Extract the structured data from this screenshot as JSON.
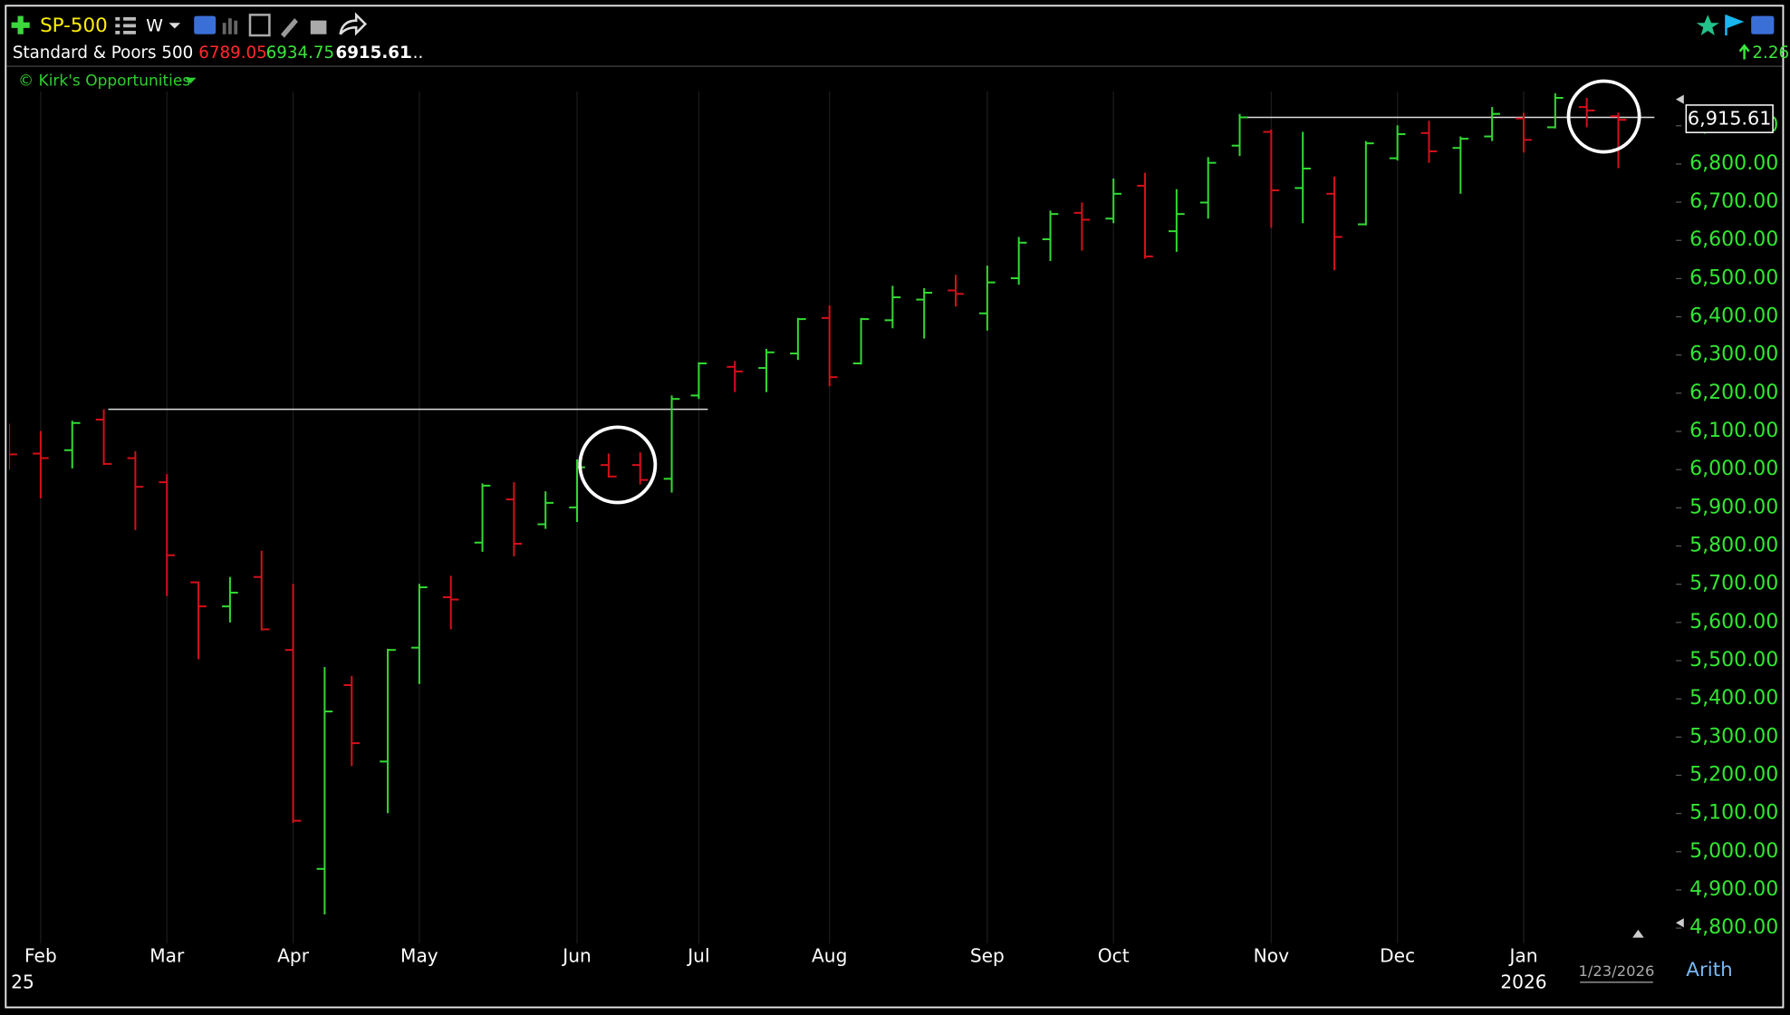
{
  "header": {
    "symbol": "SP-500",
    "interval": "W",
    "name": "Standard & Poors 500",
    "more": "...",
    "change": "2.26",
    "watermark": "© Kirk's Opportunities"
  },
  "chart_data": {
    "type": "ohlc",
    "x": [
      "2025-01-31",
      "2025-02-07",
      "2025-02-14",
      "2025-02-21",
      "2025-02-28",
      "2025-03-07",
      "2025-03-14",
      "2025-03-21",
      "2025-03-28",
      "2025-04-04",
      "2025-04-11",
      "2025-04-17",
      "2025-04-25",
      "2025-05-02",
      "2025-05-09",
      "2025-05-16",
      "2025-05-23",
      "2025-05-30",
      "2025-06-06",
      "2025-06-13",
      "2025-06-20",
      "2025-06-27",
      "2025-07-03",
      "2025-07-11",
      "2025-07-18",
      "2025-07-25",
      "2025-08-01",
      "2025-08-08",
      "2025-08-15",
      "2025-08-22",
      "2025-08-29",
      "2025-09-05",
      "2025-09-12",
      "2025-09-19",
      "2025-09-26",
      "2025-10-03",
      "2025-10-10",
      "2025-10-17",
      "2025-10-24",
      "2025-10-31",
      "2025-11-07",
      "2025-11-14",
      "2025-11-21",
      "2025-11-28",
      "2025-12-05",
      "2025-12-12",
      "2025-12-19",
      "2025-12-26",
      "2026-01-02",
      "2026-01-09",
      "2026-01-16",
      "2026-01-23"
    ],
    "open": [
      6070,
      6042,
      6051,
      6131,
      6030,
      5967,
      5705,
      5642,
      5719,
      5528,
      4955,
      5436,
      5236,
      5534,
      5666,
      5809,
      5922,
      5857,
      5901,
      6012,
      6012,
      5976,
      6194,
      6269,
      6266,
      6304,
      6397,
      6278,
      6391,
      6445,
      6469,
      6409,
      6501,
      6603,
      6672,
      6657,
      6743,
      6624,
      6699,
      6848,
      6884,
      6737,
      6722,
      6642,
      6815,
      6881,
      6842,
      6872,
      6919,
      6896,
      6949,
      6925
    ],
    "high": [
      6120,
      6101,
      6128,
      6158,
      6048,
      5988,
      5707,
      5719,
      5788,
      5701,
      5483,
      5460,
      5531,
      5701,
      5722,
      5964,
      5967,
      5943,
      6027,
      6042,
      6045,
      6194,
      6281,
      6284,
      6316,
      6397,
      6430,
      6397,
      6481,
      6475,
      6510,
      6534,
      6609,
      6678,
      6699,
      6762,
      6777,
      6734,
      6818,
      6931,
      6890,
      6884,
      6767,
      6860,
      6901,
      6913,
      6872,
      6949,
      6934,
      6985,
      6973,
      6934.75
    ],
    "low": [
      6000,
      5925,
      6003,
      6012,
      5842,
      5669,
      5504,
      5600,
      5579,
      5075,
      4836,
      5224,
      5101,
      5439,
      5582,
      5785,
      5773,
      5845,
      5863,
      5979,
      5961,
      5940,
      6185,
      6203,
      6203,
      6287,
      6218,
      6275,
      6370,
      6343,
      6427,
      6364,
      6484,
      6546,
      6573,
      6645,
      6552,
      6570,
      6657,
      6821,
      6633,
      6645,
      6522,
      6639,
      6809,
      6803,
      6722,
      6860,
      6830,
      6893,
      6896,
      6789.05
    ],
    "close": [
      6040,
      6030,
      6122,
      6015,
      5955,
      5776,
      5642,
      5678,
      5582,
      5081,
      5367,
      5284,
      5528,
      5692,
      5660,
      5958,
      5806,
      5913,
      6006,
      5982,
      5973,
      6185,
      6278,
      6257,
      6307,
      6394,
      6242,
      6394,
      6451,
      6463,
      6460,
      6490,
      6594,
      6669,
      6654,
      6722,
      6558,
      6669,
      6803,
      6922,
      6731,
      6788,
      6609,
      6854,
      6878,
      6833,
      6866,
      6931,
      6863,
      6973,
      6940,
      6915.61
    ],
    "colors": {
      "up": "#33d933",
      "down": "#d4101a"
    },
    "xlim": [
      "2025-01-31",
      "2026-02-04"
    ],
    "ylim": [
      4760,
      6990
    ],
    "yticks": [
      {
        "value": 4800,
        "label": "4,800.00"
      },
      {
        "value": 4900,
        "label": "4,900.00"
      },
      {
        "value": 5000,
        "label": "5,000.00"
      },
      {
        "value": 5100,
        "label": "5,100.00"
      },
      {
        "value": 5200,
        "label": "5,200.00"
      },
      {
        "value": 5300,
        "label": "5,300.00"
      },
      {
        "value": 5400,
        "label": "5,400.00"
      },
      {
        "value": 5500,
        "label": "5,500.00"
      },
      {
        "value": 5600,
        "label": "5,600.00"
      },
      {
        "value": 5700,
        "label": "5,700.00"
      },
      {
        "value": 5800,
        "label": "5,800.00"
      },
      {
        "value": 5900,
        "label": "5,900.00"
      },
      {
        "value": 6000,
        "label": "6,000.00"
      },
      {
        "value": 6100,
        "label": "6,100.00"
      },
      {
        "value": 6200,
        "label": "6,200.00"
      },
      {
        "value": 6300,
        "label": "6,300.00"
      },
      {
        "value": 6400,
        "label": "6,400.00"
      },
      {
        "value": 6500,
        "label": "6,500.00"
      },
      {
        "value": 6600,
        "label": "6,600.00"
      },
      {
        "value": 6700,
        "label": "6,700.00"
      },
      {
        "value": 6800,
        "label": "6,800.00"
      },
      {
        "value": 6900,
        "label": "6,900.00"
      }
    ],
    "xticks": [
      {
        "value": "2025-02-07",
        "label": "Feb"
      },
      {
        "value": "2025-03-07",
        "label": "Mar"
      },
      {
        "value": "2025-04-04",
        "label": "Apr"
      },
      {
        "value": "2025-05-02",
        "label": "May"
      },
      {
        "value": "2025-06-06",
        "label": "Jun"
      },
      {
        "value": "2025-07-03",
        "label": "Jul"
      },
      {
        "value": "2025-08-01",
        "label": "Aug"
      },
      {
        "value": "2025-09-05",
        "label": "Sep"
      },
      {
        "value": "2025-10-03",
        "label": "Oct"
      },
      {
        "value": "2025-11-07",
        "label": "Nov"
      },
      {
        "value": "2025-12-05",
        "label": "Dec"
      },
      {
        "value": "2026-01-02",
        "label": "Jan"
      }
    ],
    "year_ticks": [
      {
        "value": "2025-02-03",
        "label": "25"
      },
      {
        "value": "2026-01-02",
        "label": "2026"
      }
    ],
    "grid": true,
    "lines": [
      {
        "value": 6158,
        "from": "2025-02-22",
        "to": "2025-07-05"
      },
      {
        "value": 6922,
        "from": "2025-11-01",
        "to": "2026-01-31"
      }
    ],
    "last_price_label": "6,915.61",
    "date_label": "1/23/2026",
    "scale": "Arith"
  }
}
